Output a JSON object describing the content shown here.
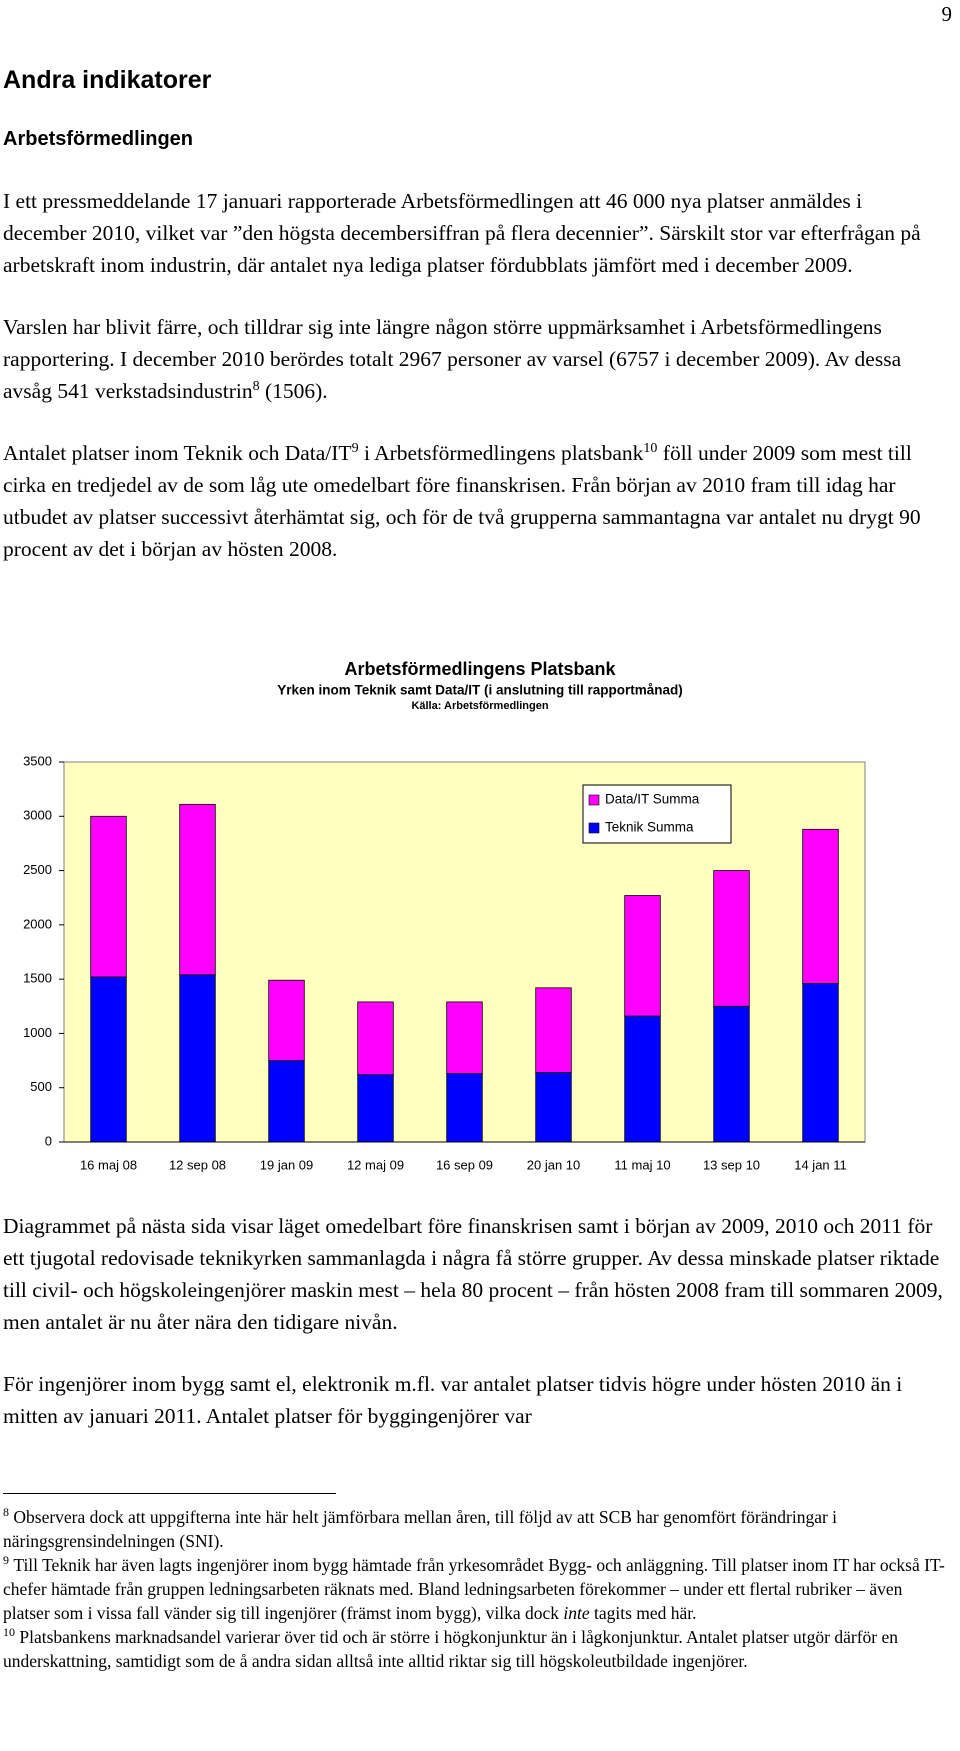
{
  "page_number": "9",
  "heading": "Andra indikatorer",
  "subheading": "Arbetsförmedlingen",
  "paragraphs_before": [
    [
      "I ett pressmeddelande 17 januari rapporterade Arbetsförmedlingen att 46 000 nya platser anmäldes i december 2010, vilket var ”den högsta decembersiffran på flera decennier”. Särskilt stor var efterfrågan på arbetskraft inom industrin, där antalet nya lediga platser fördubblats jämfört med i december 2009."
    ],
    [
      "Varslen har blivit färre, och tilldrar sig inte längre någon större uppmärksamhet i Arbetsförmedlingens rapportering. I december 2010 berördes totalt 2967 personer av varsel (6757 i december 2009). Av dessa avsåg 541 verkstadsindustrin",
      "8",
      " (1506)."
    ],
    [
      "Antalet platser inom Teknik och Data/IT",
      "9",
      " i Arbetsförmedlingens platsbank",
      "10",
      " föll under 2009 som mest till cirka en tredjedel av de som låg ute omedelbart före finanskrisen. Från början av 2010 fram till idag har utbudet av platser successivt återhämtat sig, och för de två grupperna sammantagna var antalet nu drygt 90 procent av det i början av hösten 2008."
    ]
  ],
  "chart_data": {
    "type": "stacked_bar",
    "title": "Arbetsförmedlingens Platsbank",
    "subtitle": "Yrken inom Teknik samt Data/IT (i anslutning till rapportmånad)",
    "source": "Källa: Arbetsförmedlingen",
    "categories": [
      "16 maj 08",
      "12 sep 08",
      "19 jan 09",
      "12 maj 09",
      "16 sep 09",
      "20 jan 10",
      "11 maj 10",
      "13 sep 10",
      "14 jan 11"
    ],
    "series": [
      {
        "name": "Teknik Summa",
        "color": "#0000ff",
        "values": [
          1520,
          1540,
          750,
          620,
          630,
          640,
          1160,
          1250,
          1460
        ]
      },
      {
        "name": "Data/IT Summa",
        "color": "#ff00ff",
        "values": [
          1480,
          1570,
          740,
          670,
          660,
          780,
          1110,
          1250,
          1420
        ]
      }
    ],
    "ylim": [
      0,
      3500
    ],
    "yticks": [
      0,
      500,
      1000,
      1500,
      2000,
      2500,
      3000,
      3500
    ],
    "plot_background": "#ffffc0",
    "legend": "top-right"
  },
  "paragraphs_after": [
    [
      "Diagrammet på nästa sida visar läget omedelbart före finanskrisen samt i början av 2009, 2010 och 2011 för ett tjugotal redovisade teknikyrken sammanlagda i några få större grupper. Av dessa minskade platser riktade till civil- och högskoleingenjörer maskin mest – hela 80 procent – från hösten 2008 fram till sommaren 2009, men antalet är nu åter nära den tidigare nivån."
    ],
    [
      "För ingenjörer inom bygg samt el, elektronik m.fl. var antalet platser tidvis högre under hösten 2010 än i mitten av januari 2011. Antalet platser för byggingenjörer var"
    ]
  ],
  "footnotes": [
    {
      "number": "8",
      "text": [
        "Observera dock att uppgifterna inte här helt jämförbara mellan åren, till följd av att SCB har genomfört förändringar i näringsgrensindelningen (SNI)."
      ]
    },
    {
      "number": "9",
      "text": [
        "Till Teknik har även lagts ingenjörer inom bygg hämtade från yrkesområdet Bygg- och anläggning. Till platser inom IT har också IT-chefer hämtade från gruppen ledningsarbeten räknats med. Bland ledningsarbeten förekommer – under ett flertal rubriker – även platser som i vissa fall vänder sig till ingenjörer (främst inom bygg), vilka dock ",
        "inte",
        " tagits med här."
      ]
    },
    {
      "number": "10",
      "text": [
        "Platsbankens marknadsandel varierar över tid och är större i högkonjunktur än i lågkonjunktur. Antalet platser utgör därför en underskattning, samtidigt som de å andra sidan alltså inte alltid riktar sig till högskoleutbildade ingenjörer."
      ]
    }
  ]
}
